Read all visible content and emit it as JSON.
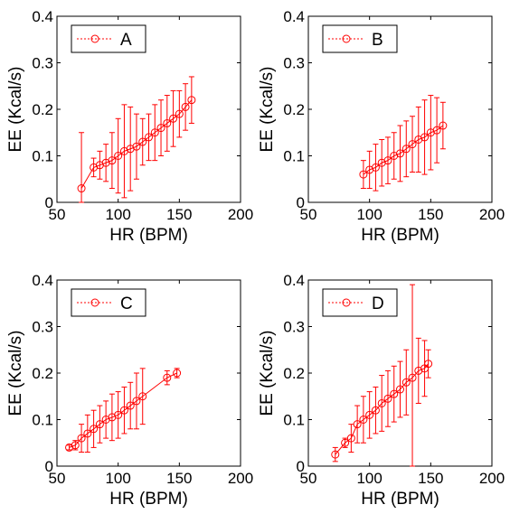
{
  "chart_data": [
    {
      "type": "scatter",
      "panel": "A",
      "xlabel": "HR (BPM)",
      "ylabel": "EE (Kcal/s)",
      "xlim": [
        50,
        200
      ],
      "ylim": [
        0,
        0.4
      ],
      "xticks": [
        50,
        100,
        150,
        200
      ],
      "yticks": [
        0,
        0.1,
        0.2,
        0.3,
        0.4
      ],
      "tick_labels_x": [
        "50",
        "100",
        "150",
        "200"
      ],
      "tick_labels_y": [
        "0",
        "0.1",
        "0.2",
        "0.3",
        "0.4"
      ],
      "legend": {
        "entries": [
          "A"
        ],
        "position": "top-left"
      },
      "marker": "circle",
      "color": "#ff0000",
      "series": [
        {
          "name": "A",
          "x": [
            70,
            80,
            85,
            90,
            95,
            100,
            105,
            110,
            115,
            120,
            125,
            130,
            135,
            140,
            145,
            150,
            155,
            160
          ],
          "y": [
            0.03,
            0.075,
            0.08,
            0.085,
            0.09,
            0.1,
            0.11,
            0.115,
            0.12,
            0.13,
            0.14,
            0.15,
            0.16,
            0.17,
            0.18,
            0.19,
            0.205,
            0.22
          ],
          "err": [
            0.12,
            0.02,
            0.03,
            0.04,
            0.06,
            0.08,
            0.1,
            0.09,
            0.07,
            0.05,
            0.05,
            0.06,
            0.06,
            0.06,
            0.06,
            0.05,
            0.05,
            0.05
          ]
        }
      ]
    },
    {
      "type": "scatter",
      "panel": "B",
      "xlabel": "HR (BPM)",
      "ylabel": "EE (Kcal/s)",
      "xlim": [
        50,
        200
      ],
      "ylim": [
        0,
        0.4
      ],
      "xticks": [
        50,
        100,
        150,
        200
      ],
      "yticks": [
        0,
        0.1,
        0.2,
        0.3,
        0.4
      ],
      "tick_labels_x": [
        "50",
        "100",
        "150",
        "200"
      ],
      "tick_labels_y": [
        "0",
        "0.1",
        "0.2",
        "0.3",
        "0.4"
      ],
      "legend": {
        "entries": [
          "B"
        ],
        "position": "top-left"
      },
      "marker": "circle",
      "color": "#ff0000",
      "series": [
        {
          "name": "B",
          "x": [
            95,
            100,
            105,
            110,
            115,
            120,
            125,
            130,
            135,
            140,
            145,
            150,
            155,
            160
          ],
          "y": [
            0.06,
            0.07,
            0.075,
            0.085,
            0.09,
            0.1,
            0.105,
            0.115,
            0.125,
            0.135,
            0.14,
            0.15,
            0.155,
            0.165
          ],
          "err": [
            0.03,
            0.04,
            0.05,
            0.05,
            0.05,
            0.05,
            0.06,
            0.06,
            0.06,
            0.07,
            0.08,
            0.08,
            0.07,
            0.05
          ]
        }
      ]
    },
    {
      "type": "scatter",
      "panel": "C",
      "xlabel": "HR (BPM)",
      "ylabel": "EE (Kcal/s)",
      "xlim": [
        50,
        200
      ],
      "ylim": [
        0,
        0.4
      ],
      "xticks": [
        50,
        100,
        150,
        200
      ],
      "yticks": [
        0,
        0.1,
        0.2,
        0.3,
        0.4
      ],
      "tick_labels_x": [
        "50",
        "100",
        "150",
        "200"
      ],
      "tick_labels_y": [
        "0",
        "0.1",
        "0.2",
        "0.3",
        "0.4"
      ],
      "legend": {
        "entries": [
          "C"
        ],
        "position": "top-left"
      },
      "marker": "circle",
      "color": "#ff0000",
      "series": [
        {
          "name": "C",
          "x": [
            60,
            65,
            70,
            75,
            80,
            85,
            90,
            95,
            100,
            105,
            110,
            115,
            120,
            140,
            148
          ],
          "y": [
            0.04,
            0.045,
            0.06,
            0.07,
            0.08,
            0.09,
            0.1,
            0.105,
            0.11,
            0.12,
            0.13,
            0.14,
            0.15,
            0.19,
            0.2
          ],
          "err": [
            0.005,
            0.01,
            0.03,
            0.04,
            0.04,
            0.04,
            0.04,
            0.05,
            0.05,
            0.05,
            0.05,
            0.06,
            0.06,
            0.015,
            0.01
          ]
        }
      ]
    },
    {
      "type": "scatter",
      "panel": "D",
      "xlabel": "HR (BPM)",
      "ylabel": "EE (Kcal/s)",
      "xlim": [
        50,
        200
      ],
      "ylim": [
        0,
        0.4
      ],
      "xticks": [
        50,
        100,
        150,
        200
      ],
      "yticks": [
        0,
        0.1,
        0.2,
        0.3,
        0.4
      ],
      "tick_labels_x": [
        "50",
        "100",
        "150",
        "200"
      ],
      "tick_labels_y": [
        "0",
        "0.1",
        "0.2",
        "0.3",
        "0.4"
      ],
      "legend": {
        "entries": [
          "D"
        ],
        "position": "top-left"
      },
      "marker": "circle",
      "color": "#ff0000",
      "series": [
        {
          "name": "D",
          "x": [
            72,
            80,
            85,
            90,
            95,
            100,
            105,
            110,
            115,
            120,
            125,
            130,
            135,
            140,
            145,
            148
          ],
          "y": [
            0.025,
            0.05,
            0.06,
            0.09,
            0.1,
            0.11,
            0.12,
            0.135,
            0.145,
            0.155,
            0.165,
            0.18,
            0.19,
            0.205,
            0.21,
            0.22
          ],
          "err": [
            0.015,
            0.01,
            0.03,
            0.04,
            0.05,
            0.05,
            0.05,
            0.06,
            0.06,
            0.06,
            0.06,
            0.07,
            0.2,
            0.07,
            0.06,
            0.03
          ]
        }
      ]
    }
  ]
}
